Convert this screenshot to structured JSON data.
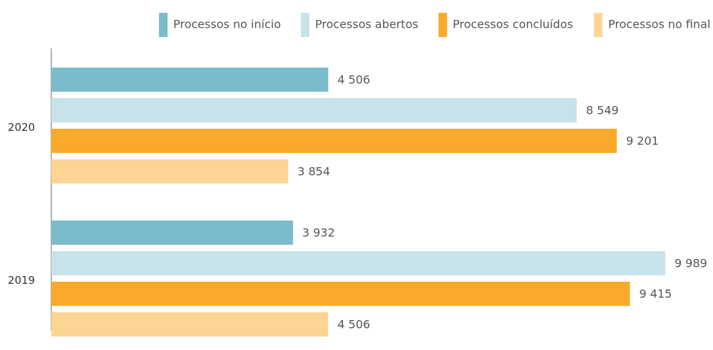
{
  "chart_data": {
    "type": "barh",
    "categories": [
      "2020",
      "2019"
    ],
    "series": [
      {
        "name": "Processos no início",
        "color": "#7bbccc",
        "values": [
          4506,
          3932
        ],
        "value_labels": [
          "4 506",
          "3 932"
        ]
      },
      {
        "name": "Processos abertos",
        "color": "#c8e2ea",
        "values": [
          8549,
          9989
        ],
        "value_labels": [
          "8 549",
          "9 989"
        ]
      },
      {
        "name": "Processos concluídos",
        "color": "#f9aa2b",
        "values": [
          9201,
          9415
        ],
        "value_labels": [
          "9 201",
          "9 415"
        ]
      },
      {
        "name": "Processos no final",
        "color": "#fcd595",
        "values": [
          3854,
          4506
        ],
        "value_labels": [
          "3 854",
          "4 506"
        ]
      }
    ]
  }
}
